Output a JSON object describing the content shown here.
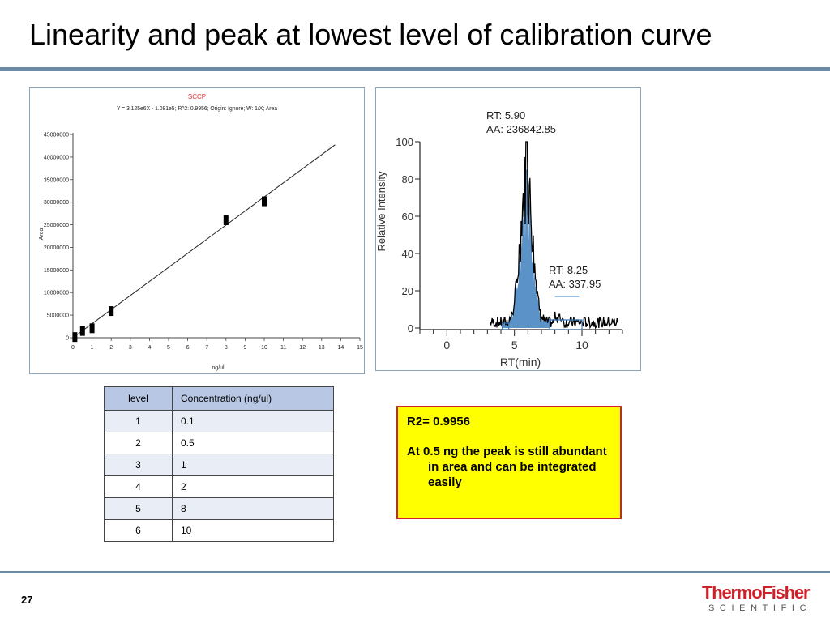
{
  "slide": {
    "title": "Linearity and peak at lowest level of calibration curve",
    "page_number": "27",
    "logo": {
      "brand": "ThermoFisher",
      "sub": "SCIENTIFIC"
    }
  },
  "table": {
    "headers": [
      "level",
      "Concentration (ng/ul)"
    ],
    "rows": [
      [
        "1",
        "0.1"
      ],
      [
        "2",
        "0.5"
      ],
      [
        "3",
        "1"
      ],
      [
        "4",
        "2"
      ],
      [
        "5",
        "8"
      ],
      [
        "6",
        "10"
      ]
    ]
  },
  "callout": {
    "line1": "R2= 0.9956",
    "line2": "At 0.5 ng the peak is still abundant in area and can be integrated easily"
  },
  "colors": {
    "accent_rule": "#6a8aa6",
    "callout_bg": "#ffff00",
    "callout_border": "#d0202a",
    "peak_fill": "#5b93c9",
    "brand_red": "#d0202a",
    "table_header": "#b8c8e4"
  },
  "chart_data": [
    {
      "type": "scatter",
      "title": "SCCP",
      "subtitle": "Y = 3.125e6X - 1.081e5; R^2: 0.9956; Origin: Ignore; W: 1/X; Area",
      "xlabel": "ng/ul",
      "ylabel": "Area",
      "xlim": [
        0,
        15
      ],
      "ylim": [
        0,
        45000000
      ],
      "x_ticks": [
        "0",
        "1",
        "2",
        "3",
        "4",
        "5",
        "6",
        "7",
        "8",
        "9",
        "10",
        "11",
        "12",
        "13",
        "14",
        "15"
      ],
      "y_ticks": [
        "0",
        "5000000",
        "10000000",
        "15000000",
        "20000000",
        "25000000",
        "30000000",
        "35000000",
        "40000000",
        "45000000"
      ],
      "points": [
        {
          "x": 0.1,
          "y": 150000
        },
        {
          "x": 0.5,
          "y": 1500000
        },
        {
          "x": 1,
          "y": 2100000
        },
        {
          "x": 2,
          "y": 5900000
        },
        {
          "x": 8,
          "y": 26000000
        },
        {
          "x": 10,
          "y": 30200000
        }
      ],
      "fit_line": {
        "x": [
          0,
          13.7
        ],
        "y": [
          -108100,
          42700000
        ]
      },
      "grid": false
    },
    {
      "type": "area",
      "xlabel": "RT(min)",
      "ylabel": "Relative Intensity",
      "xlim": [
        -2,
        13
      ],
      "ylim": [
        0,
        100
      ],
      "x_ticks": [
        "0",
        "5",
        "10"
      ],
      "y_ticks": [
        "0",
        "20",
        "40",
        "60",
        "80",
        "100"
      ],
      "annotations": [
        {
          "text1": "RT: 5.90",
          "text2": "AA: 236842.85",
          "x": 5.9,
          "y": 100
        },
        {
          "text1": "RT: 8.25",
          "text2": "AA: 337.95",
          "x": 8.25,
          "y": 17
        }
      ],
      "peak": {
        "apex_x": 5.9,
        "apex_y": 100,
        "start_x": 4.1,
        "end_x": 7.6
      },
      "trace_start_x": 3.2,
      "trace_end_x": 12.7,
      "grid": false
    }
  ]
}
